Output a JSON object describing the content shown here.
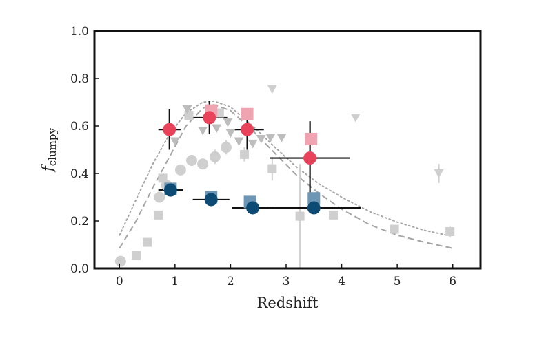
{
  "chart_data": {
    "type": "scatter",
    "xlabel": "Redshift",
    "ylabel_main": "f",
    "ylabel_sub": "clumpy",
    "xlim": [
      -0.45,
      6.5
    ],
    "ylim": [
      0.0,
      1.0
    ],
    "xticks": [
      0,
      1,
      2,
      3,
      4,
      5,
      6
    ],
    "yticks": [
      0.0,
      0.2,
      0.4,
      0.6,
      0.8,
      1.0
    ],
    "xtick_labels": [
      "0",
      "1",
      "2",
      "3",
      "4",
      "5",
      "6"
    ],
    "ytick_labels": [
      "0.0",
      "0.2",
      "0.4",
      "0.6",
      "0.8",
      "1.0"
    ],
    "colors": {
      "red": "#e8435b",
      "red_light": "#f0a3b0",
      "blue": "#0d4a74",
      "blue_light": "#6c96b3",
      "gray_light": "#cfcfcf",
      "gray_tri": "#bdbdbd",
      "gray_dark": "#9a9a9a",
      "curve": "#a5a5a5",
      "err": "#111111"
    },
    "series": [
      {
        "marker": "square",
        "color": "gray_light",
        "points": [
          {
            "x": 0.3,
            "y": 0.055
          },
          {
            "x": 0.5,
            "y": 0.11
          },
          {
            "x": 0.7,
            "y": 0.225
          },
          {
            "x": 0.78,
            "y": 0.38
          },
          {
            "x": 1.25,
            "y": 0.645
          },
          {
            "x": 1.8,
            "y": 0.655
          },
          {
            "x": 2.25,
            "y": 0.48,
            "yerr": 0.03
          },
          {
            "x": 2.75,
            "y": 0.42,
            "yerr": 0.05
          },
          {
            "x": 3.25,
            "y": 0.22,
            "yerr": 0.22
          },
          {
            "x": 3.85,
            "y": 0.225
          },
          {
            "x": 4.95,
            "y": 0.165
          },
          {
            "x": 5.95,
            "y": 0.155,
            "yerr": 0.025
          }
        ]
      },
      {
        "marker": "circle",
        "color": "gray_light",
        "points": [
          {
            "x": 0.02,
            "y": 0.03
          },
          {
            "x": 0.72,
            "y": 0.3
          },
          {
            "x": 0.85,
            "y": 0.35
          },
          {
            "x": 1.1,
            "y": 0.415
          },
          {
            "x": 1.3,
            "y": 0.455,
            "yerr": 0.02
          },
          {
            "x": 1.5,
            "y": 0.44,
            "yerr": 0.02
          },
          {
            "x": 1.72,
            "y": 0.47,
            "yerr": 0.03
          },
          {
            "x": 1.92,
            "y": 0.51,
            "yerr": 0.03
          }
        ]
      },
      {
        "marker": "triangle-down",
        "color": "gray_light",
        "points": [
          {
            "x": 2.75,
            "y": 0.755
          },
          {
            "x": 4.25,
            "y": 0.635
          },
          {
            "x": 5.75,
            "y": 0.4,
            "yerr": 0.04
          }
        ]
      },
      {
        "marker": "triangle-down",
        "color": "gray_tri",
        "points": [
          {
            "x": 1.0,
            "y": 0.535
          },
          {
            "x": 1.22,
            "y": 0.67
          },
          {
            "x": 1.5,
            "y": 0.58
          },
          {
            "x": 1.75,
            "y": 0.59
          },
          {
            "x": 1.95,
            "y": 0.615
          },
          {
            "x": 2.0,
            "y": 0.57
          },
          {
            "x": 2.15,
            "y": 0.535
          },
          {
            "x": 2.4,
            "y": 0.525
          },
          {
            "x": 2.55,
            "y": 0.545
          },
          {
            "x": 2.72,
            "y": 0.55
          },
          {
            "x": 2.92,
            "y": 0.55
          }
        ]
      },
      {
        "marker": "square",
        "color": "red_light",
        "points": [
          {
            "x": 1.65,
            "y": 0.665
          },
          {
            "x": 2.3,
            "y": 0.65
          },
          {
            "x": 3.45,
            "y": 0.545
          }
        ]
      },
      {
        "marker": "square",
        "color": "blue_light",
        "points": [
          {
            "x": 0.92,
            "y": 0.335
          },
          {
            "x": 1.65,
            "y": 0.3
          },
          {
            "x": 2.35,
            "y": 0.28
          },
          {
            "x": 3.5,
            "y": 0.295
          }
        ]
      },
      {
        "marker": "circle",
        "color": "red",
        "errcolor": "err",
        "points": [
          {
            "x": 0.9,
            "y": 0.585,
            "xerr": 0.2,
            "yerr": 0.085
          },
          {
            "x": 1.62,
            "y": 0.635,
            "xerr": 0.32,
            "yerr": 0.07
          },
          {
            "x": 2.3,
            "y": 0.585,
            "xerr": 0.3,
            "yerr": 0.085
          },
          {
            "x": 3.43,
            "y": 0.465,
            "xerr": 0.72,
            "yerr": 0.155
          }
        ]
      },
      {
        "marker": "circle",
        "color": "blue",
        "errcolor": "err",
        "points": [
          {
            "x": 0.92,
            "y": 0.33,
            "xerr": 0.22
          },
          {
            "x": 1.65,
            "y": 0.29,
            "xerr": 0.33
          },
          {
            "x": 2.4,
            "y": 0.255,
            "xerr": 0.38
          },
          {
            "x": 3.5,
            "y": 0.255,
            "xerr": 0.85
          }
        ]
      }
    ],
    "curves": [
      {
        "style": "dashed",
        "points": [
          [
            0.0,
            0.085
          ],
          [
            0.3,
            0.2
          ],
          [
            0.6,
            0.34
          ],
          [
            0.9,
            0.47
          ],
          [
            1.2,
            0.6
          ],
          [
            1.5,
            0.675
          ],
          [
            1.7,
            0.69
          ],
          [
            2.0,
            0.665
          ],
          [
            2.4,
            0.58
          ],
          [
            2.8,
            0.485
          ],
          [
            3.2,
            0.39
          ],
          [
            3.6,
            0.315
          ],
          [
            4.0,
            0.25
          ],
          [
            4.5,
            0.185
          ],
          [
            5.0,
            0.14
          ],
          [
            5.5,
            0.11
          ],
          [
            6.0,
            0.085
          ]
        ]
      },
      {
        "style": "dotted",
        "points": [
          [
            0.0,
            0.14
          ],
          [
            0.3,
            0.29
          ],
          [
            0.6,
            0.44
          ],
          [
            0.9,
            0.565
          ],
          [
            1.2,
            0.655
          ],
          [
            1.5,
            0.7
          ],
          [
            1.7,
            0.705
          ],
          [
            2.0,
            0.68
          ],
          [
            2.4,
            0.6
          ],
          [
            2.8,
            0.51
          ],
          [
            3.2,
            0.425
          ],
          [
            3.6,
            0.355
          ],
          [
            4.0,
            0.3
          ],
          [
            4.5,
            0.24
          ],
          [
            5.0,
            0.195
          ],
          [
            5.5,
            0.16
          ],
          [
            6.0,
            0.135
          ]
        ]
      }
    ]
  }
}
